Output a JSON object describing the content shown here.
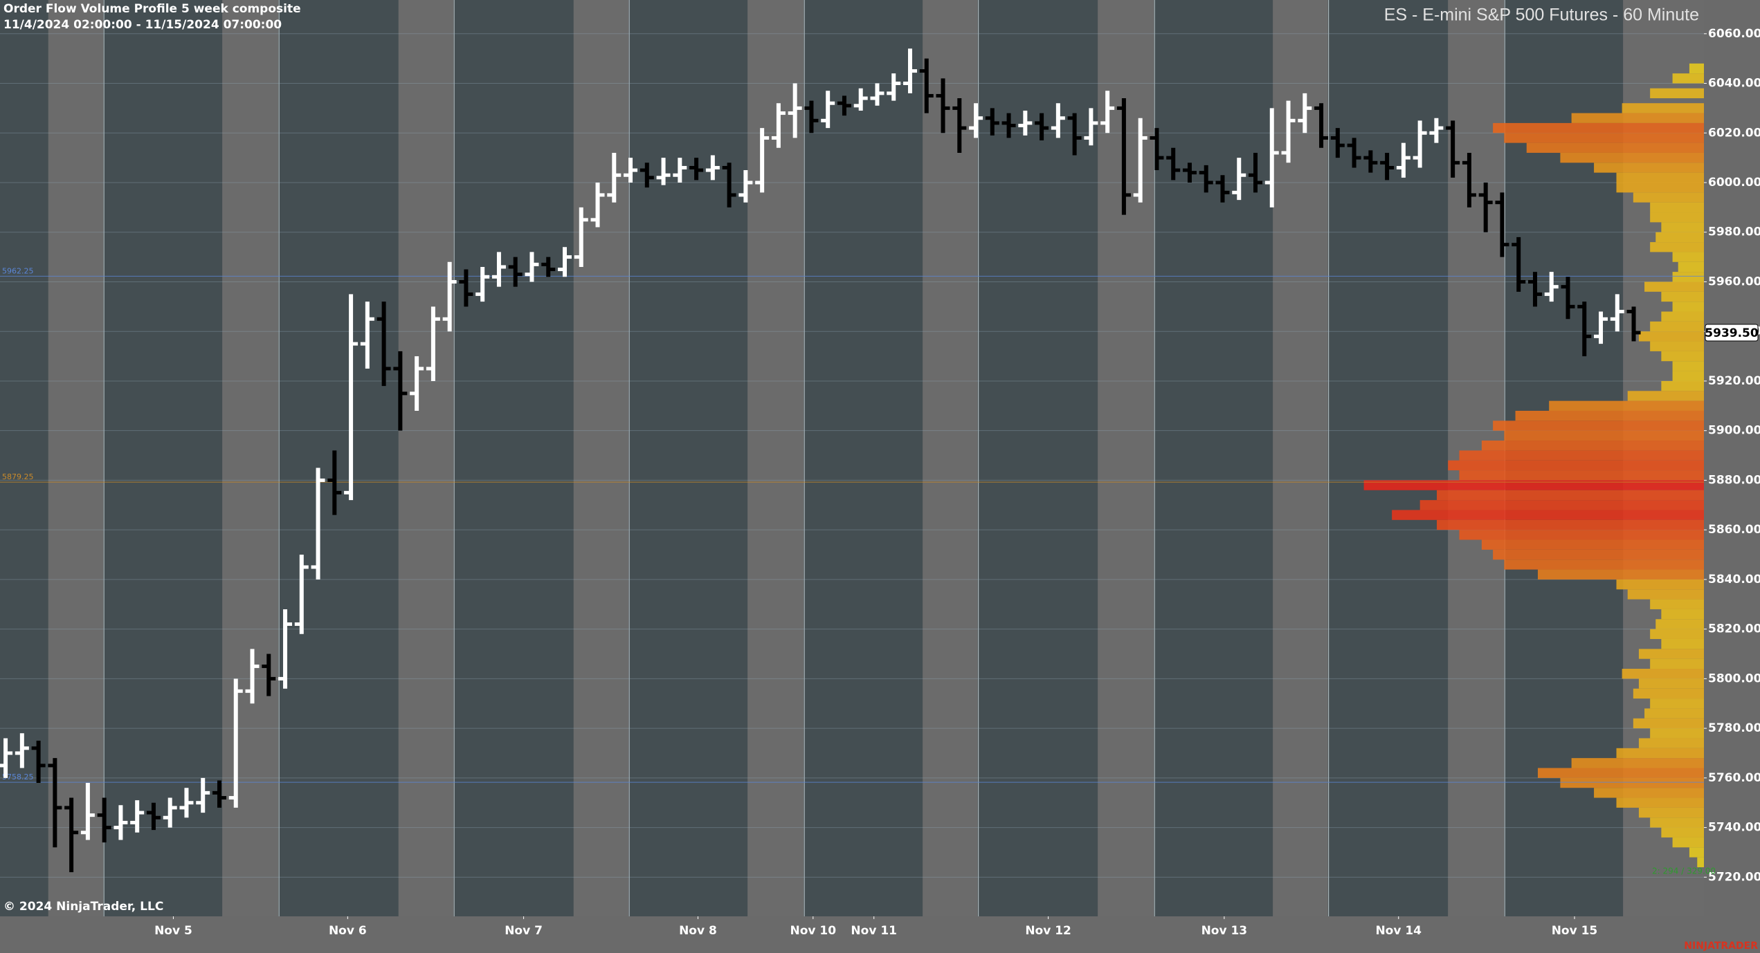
{
  "chart_data": {
    "type": "ohlc",
    "title": "Order Flow Volume Profile 5 week composite",
    "subtitle": "11/4/2024 02:00:00 - 11/15/2024 07:00:00",
    "instrument": "ES - E-mini S&P 500 Futures - 60 Minute",
    "copyright": "© 2024 NinjaTrader, LLC",
    "watermark": "NINJATRADER",
    "profile_note": "2: 294 / 329.00",
    "up_color": "#ffffff",
    "down_color": "#000000",
    "grid": true,
    "ylim": [
      5704.2,
      6073.6
    ],
    "yticks": [
      {
        "value": 5720,
        "label": "5720.00"
      },
      {
        "value": 5740,
        "label": "5740.00"
      },
      {
        "value": 5760,
        "label": "5760.00"
      },
      {
        "value": 5780,
        "label": "5780.00"
      },
      {
        "value": 5800,
        "label": "5800.00"
      },
      {
        "value": 5820,
        "label": "5820.00"
      },
      {
        "value": 5840,
        "label": "5840.00"
      },
      {
        "value": 5860,
        "label": "5860.00"
      },
      {
        "value": 5880,
        "label": "5880.00"
      },
      {
        "value": 5900,
        "label": "5900.00"
      },
      {
        "value": 5920,
        "label": "5920.00"
      },
      {
        "value": 5940,
        "label": "5940.00"
      },
      {
        "value": 5960,
        "label": "5960.00"
      },
      {
        "value": 5980,
        "label": "5980.00"
      },
      {
        "value": 6000,
        "label": "6000.00"
      },
      {
        "value": 6020,
        "label": "6020.00"
      },
      {
        "value": 6040,
        "label": "6040.00"
      },
      {
        "value": 6060,
        "label": "6060.00"
      }
    ],
    "xlim": [
      -0.34,
      103.27
    ],
    "xticks": [
      {
        "value": 10.2,
        "label": "Nov 5"
      },
      {
        "value": 20.8,
        "label": "Nov 6"
      },
      {
        "value": 31.5,
        "label": "Nov 7"
      },
      {
        "value": 42.1,
        "label": "Nov 8"
      },
      {
        "value": 49.1,
        "label": "Nov 10"
      },
      {
        "value": 52.8,
        "label": "Nov 11"
      },
      {
        "value": 63.4,
        "label": "Nov 12"
      },
      {
        "value": 74.1,
        "label": "Nov 13"
      },
      {
        "value": 84.7,
        "label": "Nov 14"
      },
      {
        "value": 95.4,
        "label": "Nov 15"
      }
    ],
    "open": [
      5765,
      5770,
      5772,
      5765,
      5748,
      5738,
      5745,
      5740,
      5742,
      5746,
      5744,
      5748,
      5750,
      5754,
      5752,
      5795,
      5805,
      5800,
      5822,
      5845,
      5880,
      5875,
      5935,
      5945,
      5925,
      5915,
      5925,
      5945,
      5960,
      5955,
      5962,
      5966,
      5963,
      5967,
      5965,
      5970,
      5985,
      5995,
      6003,
      6005,
      6002,
      6003,
      6006,
      6005,
      6006,
      5995,
      6000,
      6018,
      6028,
      6030,
      6025,
      6032,
      6031,
      6034,
      6036,
      6040,
      6045,
      6035,
      6030,
      6022,
      6026,
      6024,
      6023,
      6024,
      6022,
      6026,
      6018,
      6024,
      6030,
      5995,
      6018,
      6010,
      6005,
      6004,
      6000,
      5996,
      6003,
      6000,
      6012,
      6025,
      6030,
      6018,
      6015,
      6010,
      6008,
      6006,
      6010,
      6020,
      6022,
      6008,
      5995,
      5992,
      5975,
      5960,
      5955,
      5958,
      5950,
      5938,
      5945,
      5948
    ],
    "high": [
      5776,
      5778,
      5775,
      5768,
      5752,
      5758,
      5752,
      5749,
      5751,
      5750,
      5752,
      5756,
      5760,
      5759,
      5800,
      5812,
      5810,
      5828,
      5850,
      5885,
      5892,
      5955,
      5952,
      5952,
      5932,
      5930,
      5950,
      5968,
      5965,
      5966,
      5972,
      5970,
      5972,
      5970,
      5974,
      5990,
      6000,
      6012,
      6010,
      6008,
      6010,
      6010,
      6010,
      6011,
      6008,
      6005,
      6022,
      6032,
      6040,
      6033,
      6037,
      6035,
      6038,
      6040,
      6044,
      6054,
      6050,
      6042,
      6034,
      6032,
      6030,
      6028,
      6029,
      6028,
      6032,
      6028,
      6030,
      6037,
      6034,
      6026,
      6022,
      6014,
      6008,
      6007,
      6003,
      6010,
      6012,
      6030,
      6033,
      6036,
      6032,
      6022,
      6018,
      6013,
      6012,
      6016,
      6025,
      6026,
      6025,
      6012,
      6000,
      5996,
      5978,
      5964,
      5964,
      5962,
      5952,
      5948,
      5955,
      5950
    ],
    "low": [
      5760,
      5764,
      5758,
      5732,
      5722,
      5735,
      5734,
      5735,
      5738,
      5739,
      5740,
      5744,
      5746,
      5748,
      5748,
      5790,
      5793,
      5796,
      5818,
      5840,
      5866,
      5872,
      5925,
      5918,
      5900,
      5908,
      5920,
      5940,
      5950,
      5952,
      5958,
      5958,
      5960,
      5962,
      5962,
      5966,
      5982,
      5992,
      6000,
      5998,
      5999,
      6000,
      6001,
      6001,
      5990,
      5992,
      5996,
      6014,
      6018,
      6020,
      6022,
      6027,
      6029,
      6031,
      6033,
      6036,
      6028,
      6020,
      6012,
      6018,
      6019,
      6018,
      6019,
      6017,
      6018,
      6011,
      6015,
      6020,
      5987,
      5992,
      6005,
      6001,
      6000,
      5996,
      5992,
      5993,
      5996,
      5990,
      6008,
      6020,
      6014,
      6010,
      6006,
      6004,
      6001,
      6002,
      6006,
      6016,
      6002,
      5990,
      5980,
      5970,
      5956,
      5950,
      5952,
      5945,
      5930,
      5935,
      5940,
      5936
    ],
    "close": [
      5770,
      5772,
      5765,
      5748,
      5738,
      5745,
      5740,
      5742,
      5746,
      5744,
      5748,
      5750,
      5754,
      5752,
      5795,
      5805,
      5800,
      5822,
      5845,
      5880,
      5875,
      5935,
      5945,
      5925,
      5915,
      5925,
      5945,
      5960,
      5955,
      5962,
      5966,
      5963,
      5967,
      5965,
      5970,
      5985,
      5995,
      6003,
      6005,
      6002,
      6003,
      6006,
      6005,
      6006,
      5995,
      6000,
      6018,
      6028,
      6030,
      6025,
      6032,
      6031,
      6034,
      6036,
      6040,
      6045,
      6035,
      6030,
      6022,
      6026,
      6024,
      6023,
      6024,
      6022,
      6026,
      6018,
      6024,
      6030,
      5995,
      6018,
      6010,
      6005,
      6004,
      6000,
      5996,
      6003,
      6000,
      6012,
      6025,
      6030,
      6018,
      6015,
      6010,
      6008,
      6006,
      6010,
      6020,
      6022,
      6008,
      5995,
      5992,
      5975,
      5960,
      5955,
      5958,
      5950,
      5938,
      5945,
      5948,
      5939.5
    ],
    "last_price": {
      "value": 5939.5,
      "label": "5939.50"
    },
    "levels": [
      {
        "value": 5962.25,
        "label": "5962.25",
        "color": "#5b86d6"
      },
      {
        "value": 5879.25,
        "label": "5879.25",
        "color": "#c98a2a"
      },
      {
        "value": 5758.25,
        "label": "5758.25",
        "color": "#5b86d6"
      }
    ],
    "profile": {
      "low_color": "#e8d21c",
      "high_color": "#e8261a",
      "prices": [
        6046,
        6042,
        6036,
        6030,
        6026,
        6022,
        6018,
        6014,
        6010,
        6006,
        6002,
        5998,
        5994,
        5990,
        5986,
        5982,
        5978,
        5974,
        5970,
        5966,
        5962,
        5958,
        5954,
        5950,
        5946,
        5942,
        5938,
        5934,
        5930,
        5926,
        5922,
        5918,
        5914,
        5910,
        5906,
        5902,
        5898,
        5894,
        5890,
        5886,
        5882,
        5878,
        5874,
        5870,
        5866,
        5862,
        5858,
        5854,
        5850,
        5846,
        5842,
        5838,
        5834,
        5830,
        5826,
        5822,
        5818,
        5814,
        5810,
        5806,
        5802,
        5798,
        5794,
        5790,
        5786,
        5782,
        5778,
        5774,
        5770,
        5766,
        5762,
        5758,
        5754,
        5750,
        5746,
        5742,
        5738,
        5734,
        5730,
        5726
      ],
      "volumes": [
        13,
        28,
        48,
        73,
        118,
        188,
        178,
        158,
        128,
        98,
        78,
        78,
        63,
        48,
        48,
        38,
        43,
        48,
        28,
        23,
        28,
        53,
        38,
        28,
        38,
        48,
        58,
        48,
        38,
        28,
        28,
        38,
        68,
        138,
        168,
        188,
        178,
        198,
        218,
        228,
        218,
        303,
        238,
        253,
        278,
        238,
        218,
        198,
        188,
        178,
        148,
        78,
        68,
        48,
        38,
        43,
        48,
        38,
        58,
        48,
        73,
        58,
        63,
        48,
        53,
        63,
        48,
        58,
        78,
        118,
        148,
        128,
        98,
        78,
        58,
        48,
        38,
        28,
        13,
        6
      ]
    }
  }
}
